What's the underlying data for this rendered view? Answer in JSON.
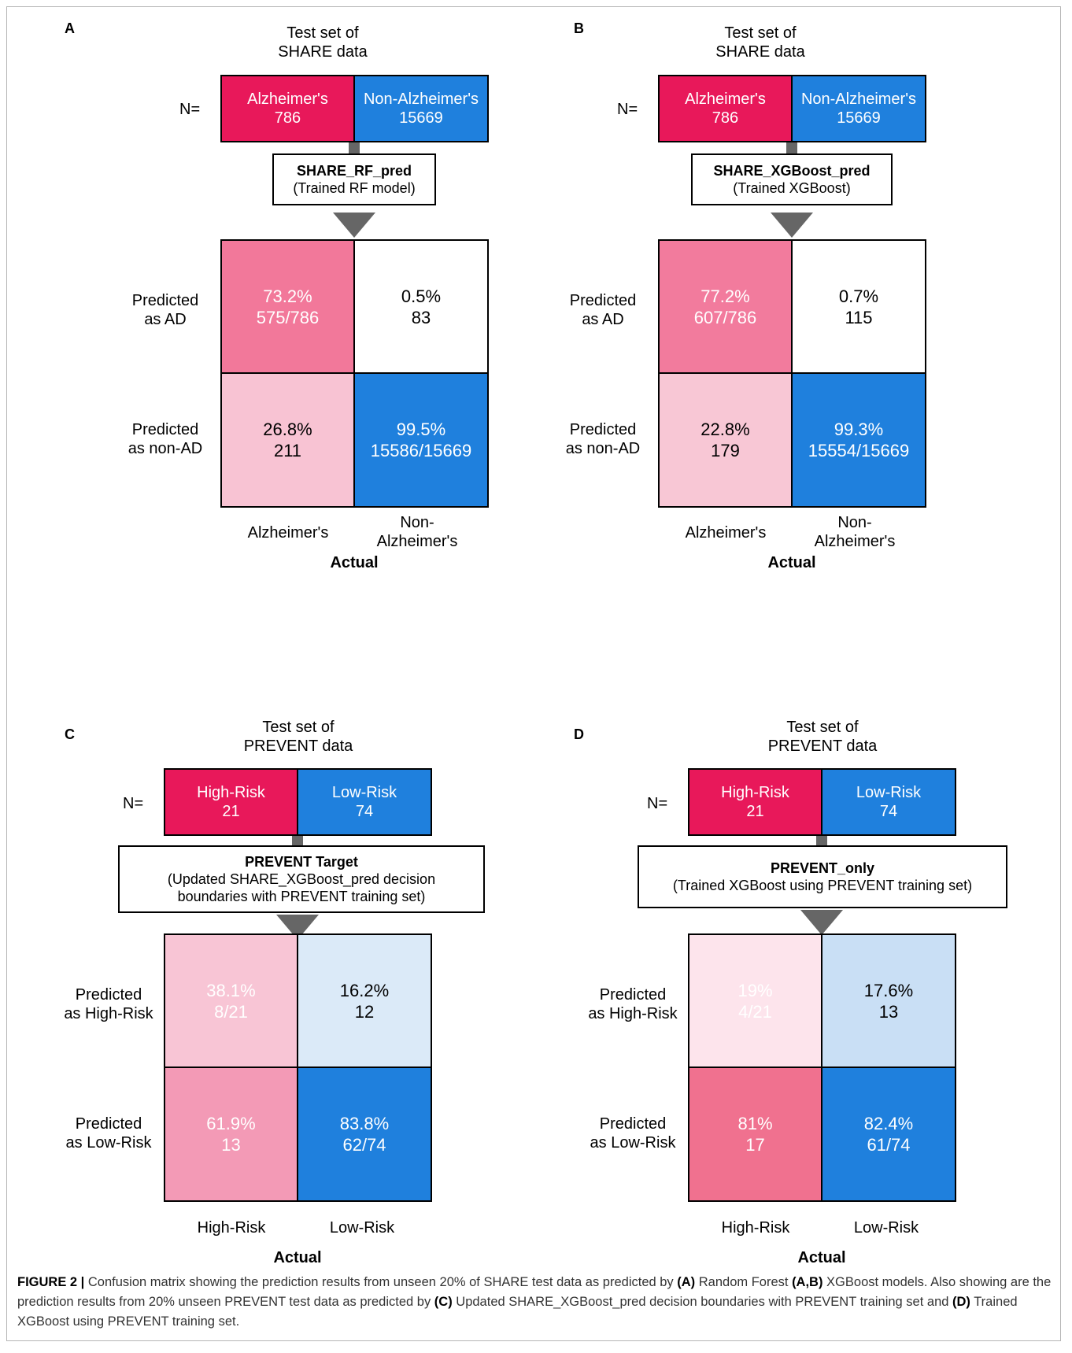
{
  "colors": {
    "red": "#e8185a",
    "blue": "#1f80dd",
    "pink_tp_A": "#f2789a",
    "pink_fn_A": "#f8c3d3",
    "pink_tp_B": "#f27b9d",
    "pink_fn_B": "#f8c7d5",
    "light_blue_C": "#dbeaf8",
    "light_blue_D": "#c9dff5",
    "pink_tp_C": "#f8c5d5",
    "pink_fn_C": "#f39ab6",
    "pink_tp_D": "#fde4ec",
    "pink_fn_D": "#f0718f"
  },
  "panels": [
    {
      "label": "A",
      "title_line1": "Test set of",
      "title_line2": "SHARE data",
      "n_label": "N=",
      "n_boxes": [
        {
          "line1": "Alzheimer's",
          "line2": "786"
        },
        {
          "line1": "Non-Alzheimer's",
          "line2": "15669"
        }
      ],
      "model_title": "SHARE_RF_pred",
      "model_sub": "(Trained RF model)",
      "model_sub2": "",
      "rows": [
        {
          "line1": "Predicted",
          "line2": "as AD"
        },
        {
          "line1": "Predicted",
          "line2": "as non-AD"
        }
      ],
      "cells": [
        {
          "line1": "73.2%",
          "line2": "575/786"
        },
        {
          "line1": "0.5%",
          "line2": "83"
        },
        {
          "line1": "26.8%",
          "line2": "211"
        },
        {
          "line1": "99.5%",
          "line2": "15586/15669"
        }
      ],
      "cols": [
        {
          "line1": "Alzheimer's",
          "line2": ""
        },
        {
          "line1": "Non-",
          "line2": "Alzheimer's"
        }
      ],
      "actual": "Actual"
    },
    {
      "label": "B",
      "title_line1": "Test set of",
      "title_line2": "SHARE data",
      "n_label": "N=",
      "n_boxes": [
        {
          "line1": "Alzheimer's",
          "line2": "786"
        },
        {
          "line1": "Non-Alzheimer's",
          "line2": "15669"
        }
      ],
      "model_title": "SHARE_XGBoost_pred",
      "model_sub": "(Trained XGBoost)",
      "model_sub2": "",
      "rows": [
        {
          "line1": "Predicted",
          "line2": "as AD"
        },
        {
          "line1": "Predicted",
          "line2": "as non-AD"
        }
      ],
      "cells": [
        {
          "line1": "77.2%",
          "line2": "607/786"
        },
        {
          "line1": "0.7%",
          "line2": "115"
        },
        {
          "line1": "22.8%",
          "line2": "179"
        },
        {
          "line1": "99.3%",
          "line2": "15554/15669"
        }
      ],
      "cols": [
        {
          "line1": "Alzheimer's",
          "line2": ""
        },
        {
          "line1": "Non-",
          "line2": "Alzheimer's"
        }
      ],
      "actual": "Actual"
    },
    {
      "label": "C",
      "title_line1": "Test set of",
      "title_line2": "PREVENT data",
      "n_label": "N=",
      "n_boxes": [
        {
          "line1": "High-Risk",
          "line2": "21"
        },
        {
          "line1": "Low-Risk",
          "line2": "74"
        }
      ],
      "model_title": "PREVENT Target",
      "model_sub": "(Updated SHARE_XGBoost_pred decision",
      "model_sub2": "boundaries with PREVENT training set)",
      "rows": [
        {
          "line1": "Predicted",
          "line2": "as High-Risk"
        },
        {
          "line1": "Predicted",
          "line2": "as Low-Risk"
        }
      ],
      "cells": [
        {
          "line1": "38.1%",
          "line2": "8/21"
        },
        {
          "line1": "16.2%",
          "line2": "12"
        },
        {
          "line1": "61.9%",
          "line2": "13"
        },
        {
          "line1": "83.8%",
          "line2": "62/74"
        }
      ],
      "cols": [
        {
          "line1": "High-Risk",
          "line2": ""
        },
        {
          "line1": "Low-Risk",
          "line2": ""
        }
      ],
      "actual": "Actual"
    },
    {
      "label": "D",
      "title_line1": "Test set of",
      "title_line2": "PREVENT data",
      "n_label": "N=",
      "n_boxes": [
        {
          "line1": "High-Risk",
          "line2": "21"
        },
        {
          "line1": "Low-Risk",
          "line2": "74"
        }
      ],
      "model_title": "PREVENT_only",
      "model_sub": "(Trained XGBoost using PREVENT training set)",
      "model_sub2": "",
      "rows": [
        {
          "line1": "Predicted",
          "line2": "as High-Risk"
        },
        {
          "line1": "Predicted",
          "line2": "as Low-Risk"
        }
      ],
      "cells": [
        {
          "line1": "19%",
          "line2": "4/21"
        },
        {
          "line1": "17.6%",
          "line2": "13"
        },
        {
          "line1": "81%",
          "line2": "17"
        },
        {
          "line1": "82.4%",
          "line2": "61/74"
        }
      ],
      "cols": [
        {
          "line1": "High-Risk",
          "line2": ""
        },
        {
          "line1": "Low-Risk",
          "line2": ""
        }
      ],
      "actual": "Actual"
    }
  ],
  "caption": {
    "fig": "FIGURE 2 |",
    "t1": " Confusion matrix showing the prediction results from unseen 20% of SHARE test data as predicted by ",
    "b1": "(A)",
    "t2": " Random Forest ",
    "b2": "(A,B)",
    "t3": " XGBoost models. Also showing are the prediction results from 20% unseen PREVENT test data as predicted by ",
    "b3": "(C)",
    "t4": " Updated SHARE_XGBoost_pred decision boundaries with PREVENT training set and ",
    "b4": "(D)",
    "t5": " Trained XGBoost using PREVENT training set."
  }
}
